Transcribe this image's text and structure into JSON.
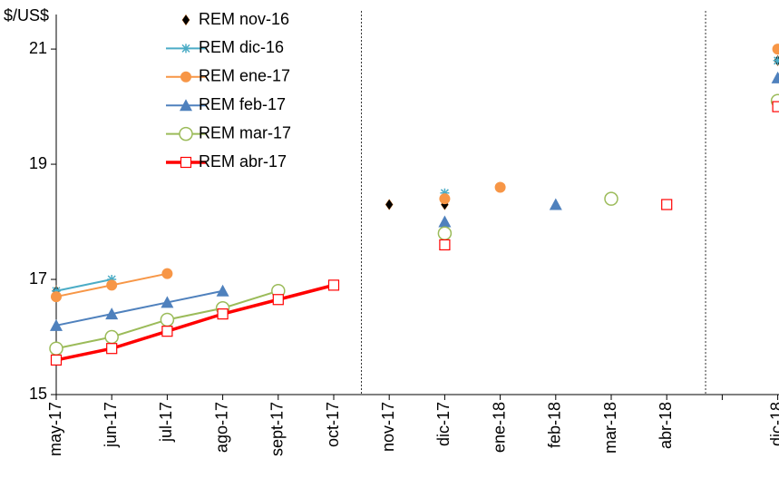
{
  "chart_data": {
    "type": "line",
    "y_label": "$/US$",
    "categories": [
      "may-17",
      "jun-17",
      "jul-17",
      "ago-17",
      "sept-17",
      "oct-17",
      "nov-17",
      "dic-17",
      "ene-18",
      "feb-18",
      "mar-18",
      "abr-18",
      null,
      "dic-18"
    ],
    "ylim": [
      15,
      21.6
    ],
    "yticks": [
      15,
      17,
      19,
      21
    ],
    "series": [
      {
        "name": "REM nov-16",
        "color": "#000000",
        "marker": "diamond",
        "line": false,
        "values": [
          16.8,
          null,
          null,
          null,
          null,
          null,
          null,
          null,
          null,
          null,
          null,
          null,
          null,
          null
        ],
        "point_values": [
          null,
          null,
          null,
          null,
          null,
          null,
          18.3,
          18.3,
          null,
          null,
          null,
          null,
          null,
          20.8
        ]
      },
      {
        "name": "REM dic-16",
        "color": "#4bacc6",
        "marker": "star",
        "line": true,
        "values": [
          16.8,
          17.0,
          null,
          null,
          null,
          null,
          null,
          null,
          null,
          null,
          null,
          null,
          null,
          null
        ],
        "point_values": [
          null,
          null,
          null,
          null,
          null,
          null,
          null,
          18.5,
          null,
          null,
          null,
          null,
          null,
          20.8
        ]
      },
      {
        "name": "REM ene-17",
        "color": "#f79646",
        "marker": "circle",
        "line": true,
        "values": [
          16.7,
          16.9,
          17.1,
          null,
          null,
          null,
          null,
          null,
          null,
          null,
          null,
          null,
          null,
          null
        ],
        "point_values": [
          null,
          null,
          null,
          null,
          null,
          null,
          null,
          18.4,
          18.6,
          null,
          null,
          null,
          null,
          21.0
        ]
      },
      {
        "name": "REM feb-17",
        "color": "#4f81bd",
        "marker": "triangle",
        "line": true,
        "values": [
          16.2,
          16.4,
          16.6,
          16.8,
          null,
          null,
          null,
          null,
          null,
          null,
          null,
          null,
          null,
          null
        ],
        "point_values": [
          null,
          null,
          null,
          null,
          null,
          null,
          null,
          18.0,
          null,
          18.3,
          null,
          null,
          null,
          20.5
        ]
      },
      {
        "name": "REM mar-17",
        "color": "#9bbb59",
        "marker": "open-circle",
        "line": true,
        "values": [
          15.8,
          16.0,
          16.3,
          16.5,
          16.8,
          null,
          null,
          null,
          null,
          null,
          null,
          null,
          null,
          null
        ],
        "point_values": [
          null,
          null,
          null,
          null,
          null,
          null,
          null,
          17.8,
          null,
          null,
          18.4,
          null,
          null,
          20.1
        ]
      },
      {
        "name": "REM abr-17",
        "color": "#ff0000",
        "marker": "open-square",
        "line": true,
        "thick": true,
        "values": [
          15.6,
          15.8,
          16.1,
          16.4,
          16.65,
          16.9,
          null,
          null,
          null,
          null,
          null,
          null,
          null,
          null
        ],
        "point_values": [
          null,
          null,
          null,
          null,
          null,
          null,
          null,
          17.6,
          null,
          null,
          null,
          18.3,
          null,
          20.0
        ]
      }
    ]
  }
}
